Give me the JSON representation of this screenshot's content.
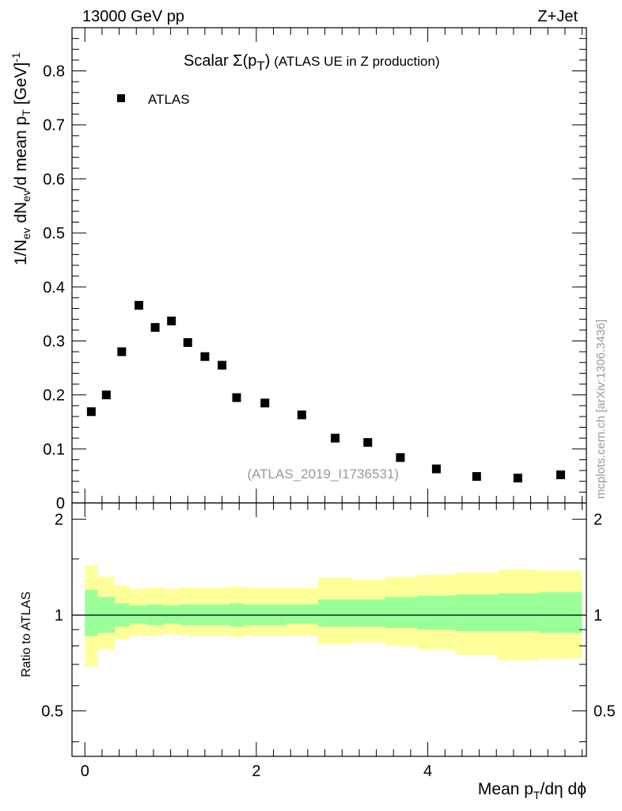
{
  "header": {
    "left": "13000 GeV pp",
    "right": "Z+Jet"
  },
  "title": {
    "main": "Scalar Σ(p",
    "sub": "T",
    "close": ")",
    "rest": " (ATLAS UE in Z production)"
  },
  "watermark": "mcplots.cern.ch [arXiv:1306.3436]",
  "analysis_id": "(ATLAS_2019_I1736531)",
  "legend": {
    "label": "ATLAS"
  },
  "ylabel_upper": {
    "a": "1/N",
    "a_sub": "ev",
    "b": " dN",
    "b_sub": "ev",
    "c": "/d mean p",
    "c_sub": "T",
    "d": " [GeV]",
    "d_sup": "-1"
  },
  "ylabel_lower": "Ratio to ATLAS",
  "xlabel": {
    "a": "Mean p",
    "a_sub": "T",
    "b": "/dη dϕ"
  },
  "colors": {
    "band_stat": "#99ff99",
    "band_total": "#ffff99",
    "marker": "#000000"
  },
  "chart_data": [
    {
      "type": "scatter",
      "panel": "main",
      "title": "Scalar Σ(pT) (ATLAS UE in Z production)",
      "xlabel": "Mean pT/dη dϕ",
      "ylabel": "1/Nev dNev/d mean pT [GeV]^-1",
      "xlim": [
        -0.15,
        5.85
      ],
      "ylim": [
        0,
        0.88
      ],
      "yticks": [
        0,
        0.1,
        0.2,
        0.3,
        0.4,
        0.5,
        0.6,
        0.7,
        0.8
      ],
      "ytick_labels": [
        "0",
        "0.1",
        "0.2",
        "0.3",
        "0.4",
        "0.5",
        "0.6",
        "0.7",
        "0.8"
      ],
      "legend_position": "top-left",
      "series": [
        {
          "name": "ATLAS",
          "x": [
            0.075,
            0.25,
            0.43,
            0.63,
            0.82,
            1.01,
            1.2,
            1.4,
            1.6,
            1.77,
            2.1,
            2.53,
            2.92,
            3.3,
            3.68,
            4.1,
            4.57,
            5.05,
            5.55
          ],
          "y": [
            0.169,
            0.2,
            0.28,
            0.366,
            0.325,
            0.337,
            0.297,
            0.271,
            0.255,
            0.195,
            0.185,
            0.163,
            0.12,
            0.112,
            0.084,
            0.063,
            0.049,
            0.046,
            0.052
          ]
        }
      ]
    },
    {
      "type": "area",
      "panel": "ratio",
      "ylabel": "Ratio to ATLAS",
      "xlabel": "Mean pT/dη dϕ",
      "xlim": [
        -0.15,
        5.85
      ],
      "ylim": [
        0.36,
        2.25
      ],
      "scale": "log",
      "yticks": [
        0.5,
        1,
        2
      ],
      "ytick_labels": [
        "0.5",
        "1",
        "2"
      ],
      "xticks": [
        0,
        2,
        4
      ],
      "xtick_labels": [
        "0",
        "2",
        "4"
      ],
      "reference_line": 1,
      "bin_edges": [
        0,
        0.15,
        0.35,
        0.52,
        0.72,
        0.92,
        1.1,
        1.3,
        1.5,
        1.7,
        1.85,
        2.35,
        2.72,
        3.12,
        3.5,
        3.88,
        4.32,
        4.82,
        5.3,
        5.8
      ],
      "series": [
        {
          "name": "stat",
          "low": [
            0.86,
            0.88,
            0.92,
            0.94,
            0.93,
            0.94,
            0.93,
            0.93,
            0.93,
            0.92,
            0.93,
            0.94,
            0.92,
            0.92,
            0.91,
            0.9,
            0.89,
            0.89,
            0.88
          ],
          "high": [
            1.2,
            1.14,
            1.09,
            1.07,
            1.08,
            1.07,
            1.08,
            1.08,
            1.08,
            1.09,
            1.08,
            1.08,
            1.12,
            1.12,
            1.14,
            1.15,
            1.16,
            1.17,
            1.18
          ]
        },
        {
          "name": "total",
          "low": [
            0.69,
            0.78,
            0.84,
            0.86,
            0.86,
            0.87,
            0.86,
            0.86,
            0.86,
            0.85,
            0.86,
            0.86,
            0.81,
            0.82,
            0.8,
            0.78,
            0.75,
            0.72,
            0.73
          ],
          "high": [
            1.43,
            1.32,
            1.24,
            1.21,
            1.22,
            1.21,
            1.22,
            1.22,
            1.22,
            1.23,
            1.22,
            1.22,
            1.31,
            1.29,
            1.32,
            1.34,
            1.36,
            1.39,
            1.38
          ]
        }
      ]
    }
  ]
}
